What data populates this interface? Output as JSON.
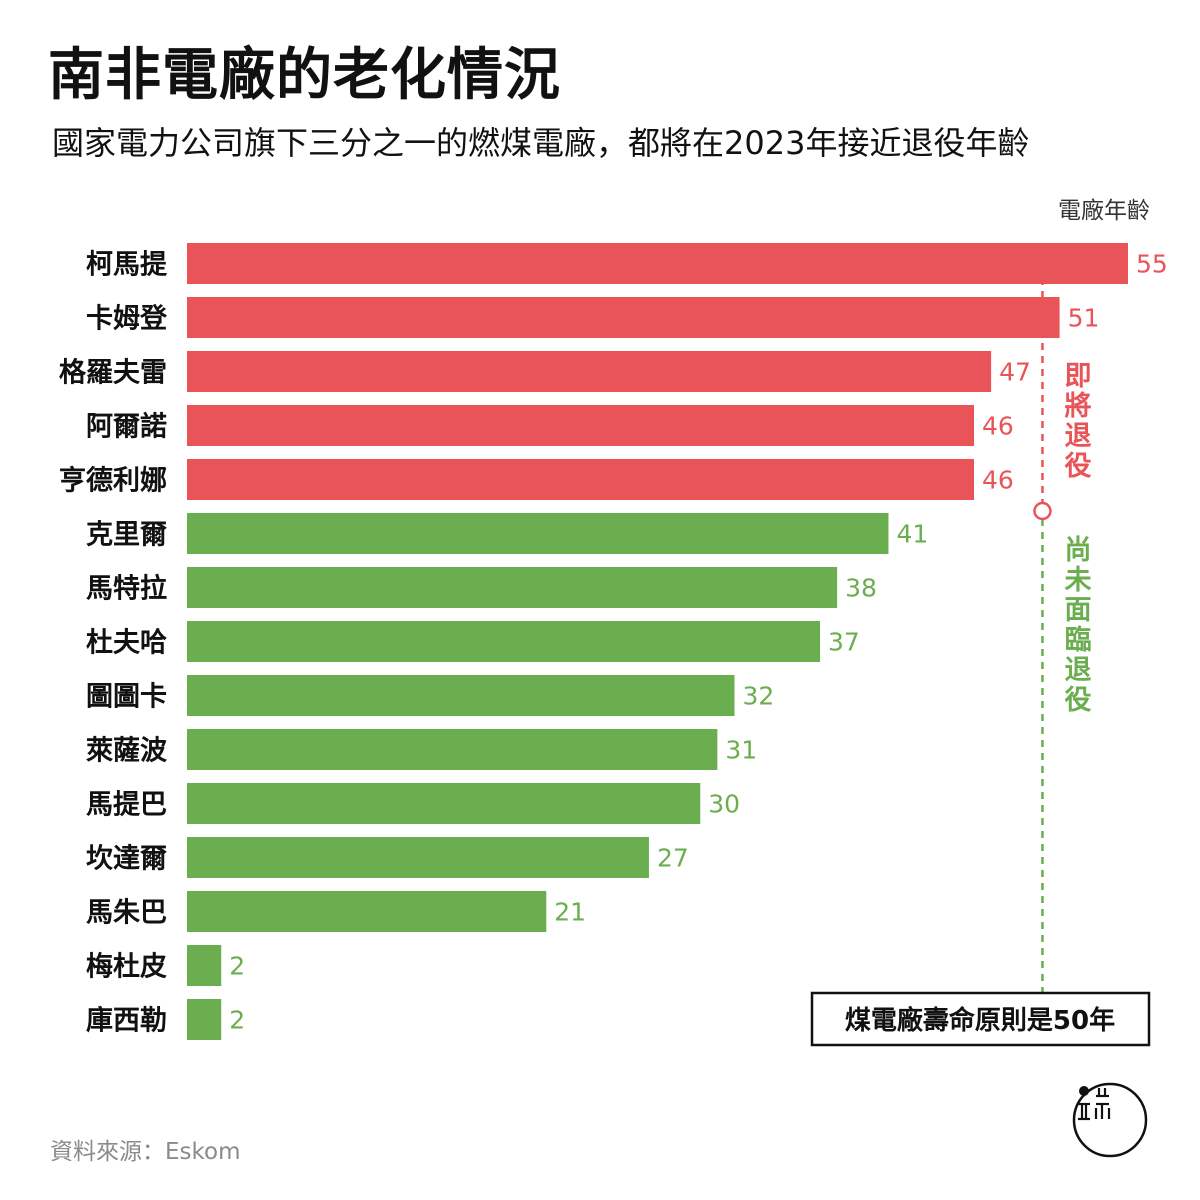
{
  "title": "南非電廠的老化情況",
  "subtitle": "國家電力公司旗下三分之一的燃煤電廠，都將在2023年接近退役年齡",
  "source": "資料來源：Eskom",
  "colors": {
    "retiring": "#e85457",
    "not_retiring": "#6bae4f",
    "text": "#111111",
    "muted": "#8a8a8a"
  },
  "chart_data": {
    "type": "bar",
    "orientation": "horizontal",
    "title": "南非電廠的老化情況",
    "subtitle": "國家電力公司旗下三分之一的燃煤電廠，都將在2023年接近退役年齡",
    "value_label": "電廠年齡",
    "categories": [
      "柯馬提",
      "卡姆登",
      "格羅夫雷",
      "阿爾諾",
      "亨德利娜",
      "克里爾",
      "馬特拉",
      "杜夫哈",
      "圖圖卡",
      "萊薩波",
      "馬提巴",
      "坎達爾",
      "馬朱巴",
      "梅杜皮",
      "庫西勒"
    ],
    "values": [
      55,
      51,
      47,
      46,
      46,
      41,
      38,
      37,
      32,
      31,
      30,
      27,
      21,
      2,
      2
    ],
    "groups": [
      "retiring",
      "retiring",
      "retiring",
      "retiring",
      "retiring",
      "not_retiring",
      "not_retiring",
      "not_retiring",
      "not_retiring",
      "not_retiring",
      "not_retiring",
      "not_retiring",
      "not_retiring",
      "not_retiring",
      "not_retiring"
    ],
    "group_labels": {
      "retiring": "即將退役",
      "not_retiring": "尚未面臨退役"
    },
    "reference_line": {
      "value": 50,
      "label": "煤電廠壽命原則是50年"
    },
    "xlim": [
      0,
      55
    ]
  }
}
